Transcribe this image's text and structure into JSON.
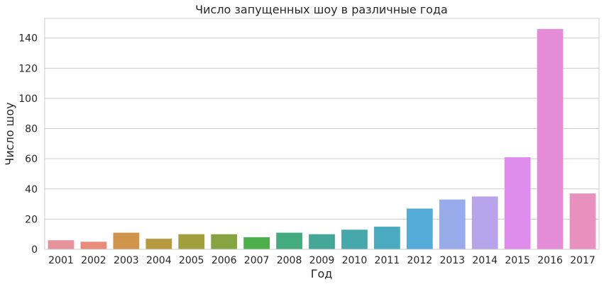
{
  "chart_data": {
    "type": "bar",
    "title": "Число запущенных шоу в различные года",
    "xlabel": "Год",
    "ylabel": "Число шоу",
    "categories": [
      "2001",
      "2002",
      "2003",
      "2004",
      "2005",
      "2006",
      "2007",
      "2008",
      "2009",
      "2010",
      "2011",
      "2012",
      "2013",
      "2014",
      "2015",
      "2016",
      "2017"
    ],
    "values": [
      6,
      5,
      11,
      7,
      10,
      10,
      8,
      11,
      10,
      13,
      15,
      27,
      33,
      35,
      61,
      146,
      37
    ],
    "ylim": [
      0,
      153
    ],
    "yticks": [
      "0",
      "20",
      "40",
      "60",
      "80",
      "100",
      "120",
      "140"
    ],
    "grid": true,
    "colors": [
      "#e8929c",
      "#e98b7c",
      "#d1944b",
      "#b89a3e",
      "#a19f3d",
      "#86a43f",
      "#4daf4a",
      "#44ab7e",
      "#45a797",
      "#47a8ab",
      "#49aac0",
      "#54aad9",
      "#99abeb",
      "#b8a4ea",
      "#de8ded",
      "#e58cd7",
      "#e891be"
    ],
    "style": {
      "grid_color": "#cccccc",
      "text_color": "#262626"
    }
  }
}
